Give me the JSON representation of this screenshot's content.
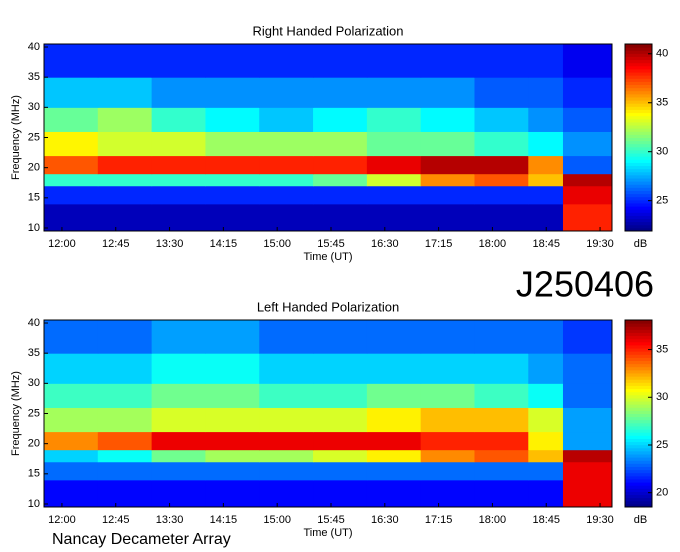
{
  "page": {
    "code": "J250406",
    "footer": "Nancay Decameter Array"
  },
  "chart_data": [
    {
      "type": "heatmap",
      "title": "Right Handed Polarization",
      "x_label": "Time (UT)",
      "y_label": "Frequency (MHz)",
      "colorbar_label": "dB",
      "colormap": "jet",
      "x_edges": [
        705,
        750,
        795,
        840,
        885,
        930,
        975,
        1020,
        1065,
        1110,
        1139,
        1180
      ],
      "y_edges": [
        9.5,
        14,
        17,
        19,
        22,
        26,
        30,
        35,
        40.5
      ],
      "z": [
        [
          23,
          23,
          23,
          23,
          23,
          23,
          23,
          23,
          23,
          23,
          38
        ],
        [
          25,
          25,
          25,
          25,
          25,
          25,
          25,
          25,
          25,
          25,
          39
        ],
        [
          30,
          30,
          30,
          30,
          30,
          31,
          33,
          36,
          37,
          35,
          40
        ],
        [
          37,
          38,
          38,
          38,
          38,
          38,
          39,
          40,
          40,
          36,
          26
        ],
        [
          34,
          33,
          33,
          32,
          32,
          32,
          31,
          31,
          30,
          29,
          27
        ],
        [
          31,
          32,
          30,
          29,
          28,
          29,
          30,
          29,
          28,
          27,
          26
        ],
        [
          28,
          28,
          27,
          27,
          27,
          27,
          27,
          27,
          26,
          26,
          25
        ],
        [
          25,
          25,
          25,
          25,
          25,
          25,
          25,
          25,
          25,
          25,
          24
        ]
      ],
      "xlim": [
        705,
        1180
      ],
      "ylim": [
        9.5,
        40.5
      ],
      "xticks": [
        {
          "value": 720,
          "label": "12:00"
        },
        {
          "value": 765,
          "label": "12:45"
        },
        {
          "value": 810,
          "label": "13:30"
        },
        {
          "value": 855,
          "label": "14:15"
        },
        {
          "value": 900,
          "label": "15:00"
        },
        {
          "value": 945,
          "label": "15:45"
        },
        {
          "value": 990,
          "label": "16:30"
        },
        {
          "value": 1035,
          "label": "17:15"
        },
        {
          "value": 1080,
          "label": "18:00"
        },
        {
          "value": 1125,
          "label": "18:45"
        },
        {
          "value": 1170,
          "label": "19:30"
        }
      ],
      "yticks": [
        10,
        15,
        20,
        25,
        30,
        35,
        40
      ],
      "clim": [
        21.9,
        41
      ],
      "cticks": [
        25,
        30,
        35,
        40
      ]
    },
    {
      "type": "heatmap",
      "title": "Left Handed Polarization",
      "x_label": "Time (UT)",
      "y_label": "Frequency (MHz)",
      "colorbar_label": "dB",
      "colormap": "jet",
      "x_edges": [
        705,
        750,
        795,
        840,
        885,
        930,
        975,
        1020,
        1065,
        1110,
        1139,
        1180
      ],
      "y_edges": [
        9.5,
        14,
        17,
        19,
        22,
        26,
        30,
        35,
        40.5
      ],
      "z": [
        [
          21,
          21,
          21,
          21,
          21,
          21,
          21,
          21,
          21,
          21,
          36
        ],
        [
          23,
          23,
          23,
          23,
          23,
          23,
          23,
          23,
          23,
          23,
          36
        ],
        [
          25,
          26,
          28,
          29,
          29,
          30,
          31,
          33,
          34,
          32,
          37
        ],
        [
          33,
          34,
          36,
          36,
          36,
          36,
          36,
          35,
          35,
          31,
          24
        ],
        [
          29,
          29,
          30,
          30,
          30,
          30,
          31,
          32,
          32,
          30,
          24
        ],
        [
          27,
          27,
          28,
          28,
          27,
          27,
          28,
          28,
          27,
          26,
          23
        ],
        [
          25,
          25,
          26,
          26,
          25,
          25,
          25,
          25,
          25,
          24,
          23
        ],
        [
          23,
          23,
          24,
          24,
          23,
          23,
          23,
          23,
          23,
          23,
          22
        ]
      ],
      "xlim": [
        705,
        1180
      ],
      "ylim": [
        9.5,
        40.5
      ],
      "xticks": [
        {
          "value": 720,
          "label": "12:00"
        },
        {
          "value": 765,
          "label": "12:45"
        },
        {
          "value": 810,
          "label": "13:30"
        },
        {
          "value": 855,
          "label": "14:15"
        },
        {
          "value": 900,
          "label": "15:00"
        },
        {
          "value": 945,
          "label": "15:45"
        },
        {
          "value": 990,
          "label": "16:30"
        },
        {
          "value": 1035,
          "label": "17:15"
        },
        {
          "value": 1080,
          "label": "18:00"
        },
        {
          "value": 1125,
          "label": "18:45"
        },
        {
          "value": 1170,
          "label": "19:30"
        }
      ],
      "yticks": [
        10,
        15,
        20,
        25,
        30,
        35,
        40
      ],
      "clim": [
        18.5,
        38.1
      ],
      "cticks": [
        20,
        25,
        30,
        35
      ]
    }
  ]
}
